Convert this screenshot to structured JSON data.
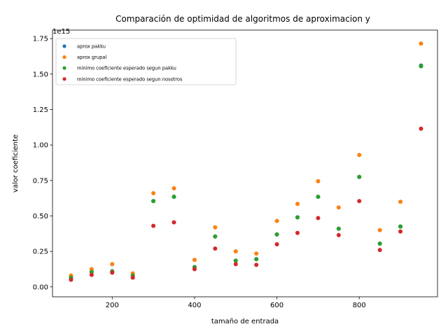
{
  "chart_data": {
    "type": "scatter",
    "title": "Comparación de optimidad de algoritmos de aproximacion y",
    "xlabel": "tamaño de entrada",
    "ylabel": "valor coeficiente",
    "offset_text": "1e15",
    "xlim": [
      55,
      990
    ],
    "ylim": [
      -0.07,
      1.81
    ],
    "xticks": [
      200,
      400,
      600,
      800
    ],
    "xtick_labels": [
      "200",
      "400",
      "600",
      "800"
    ],
    "yticks": [
      0.0,
      0.25,
      0.5,
      0.75,
      1.0,
      1.25,
      1.5,
      1.75
    ],
    "ytick_labels": [
      "0.00",
      "0.25",
      "0.50",
      "0.75",
      "1.00",
      "1.25",
      "1.50",
      "1.75"
    ],
    "x": [
      100,
      150,
      200,
      250,
      300,
      350,
      400,
      450,
      500,
      550,
      600,
      650,
      700,
      750,
      800,
      850,
      900,
      950
    ],
    "legend_position": "upper-left",
    "series": [
      {
        "name": "aprox pakku",
        "color": "#1f77b4",
        "values": [
          0.065,
          0.105,
          0.11,
          0.08,
          0.605,
          0.635,
          0.14,
          0.355,
          0.185,
          0.195,
          0.37,
          0.49,
          0.635,
          0.41,
          0.775,
          0.305,
          0.425,
          1.56
        ]
      },
      {
        "name": "aprox grupal",
        "color": "#ff7f0e",
        "values": [
          0.08,
          0.125,
          0.16,
          0.095,
          0.66,
          0.695,
          0.19,
          0.42,
          0.25,
          0.235,
          0.465,
          0.585,
          0.745,
          0.56,
          0.93,
          0.4,
          0.6,
          1.715
        ]
      },
      {
        "name": "minimo coeficiente esperado segun pakku",
        "color": "#2ca02c",
        "values": [
          0.065,
          0.105,
          0.11,
          0.08,
          0.605,
          0.635,
          0.14,
          0.355,
          0.185,
          0.195,
          0.37,
          0.49,
          0.635,
          0.41,
          0.775,
          0.305,
          0.425,
          1.555
        ]
      },
      {
        "name": "minimo coeficiente esperado segun nosotros",
        "color": "#d62728",
        "values": [
          0.05,
          0.085,
          0.1,
          0.065,
          0.43,
          0.455,
          0.125,
          0.27,
          0.16,
          0.155,
          0.3,
          0.38,
          0.485,
          0.365,
          0.605,
          0.26,
          0.39,
          1.115
        ]
      }
    ]
  }
}
